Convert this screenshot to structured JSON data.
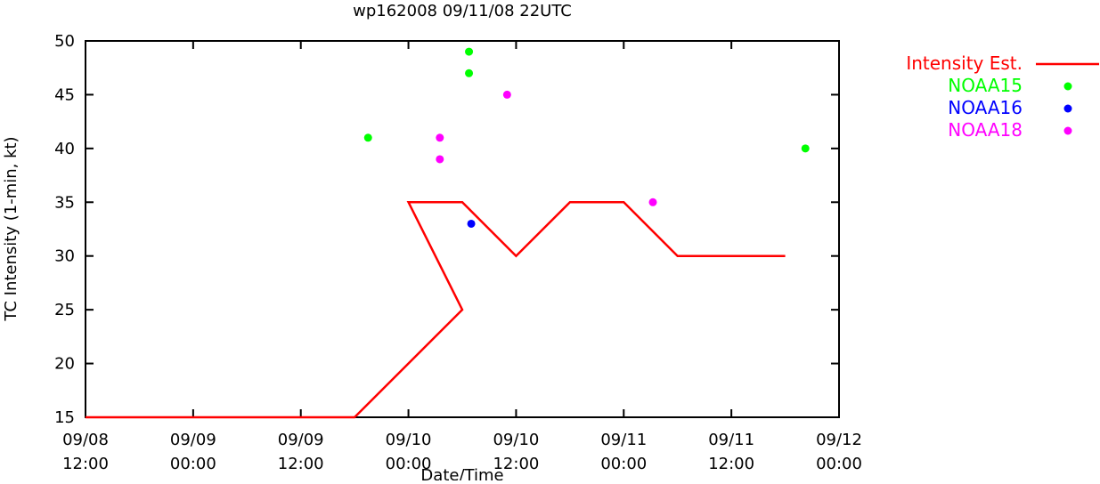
{
  "chart_data": {
    "type": "line",
    "title": "wp162008 09/11/08 22UTC",
    "xlabel": "Date/Time",
    "ylabel": "TC Intensity (1-min, kt)",
    "ylim": [
      15,
      50
    ],
    "yticks": [
      15,
      20,
      25,
      30,
      35,
      40,
      45,
      50
    ],
    "xlim": [
      "2008-09-08T12:00",
      "2008-09-12T00:00"
    ],
    "xticks": [
      {
        "t": "2008-09-08T12:00",
        "line1": "09/08",
        "line2": "12:00"
      },
      {
        "t": "2008-09-09T00:00",
        "line1": "09/09",
        "line2": "00:00"
      },
      {
        "t": "2008-09-09T12:00",
        "line1": "09/09",
        "line2": "12:00"
      },
      {
        "t": "2008-09-10T00:00",
        "line1": "09/10",
        "line2": "00:00"
      },
      {
        "t": "2008-09-10T12:00",
        "line1": "09/10",
        "line2": "12:00"
      },
      {
        "t": "2008-09-11T00:00",
        "line1": "09/11",
        "line2": "00:00"
      },
      {
        "t": "2008-09-11T12:00",
        "line1": "09/11",
        "line2": "12:00"
      },
      {
        "t": "2008-09-12T00:00",
        "line1": "09/12",
        "line2": "00:00"
      }
    ],
    "grid": false,
    "legend_position": "outside-right",
    "series": [
      {
        "name": "Intensity Est.",
        "kind": "line",
        "color": "#ff0000",
        "points": [
          {
            "x": "2008-09-08T12:00",
            "y": 15
          },
          {
            "x": "2008-09-09T18:00",
            "y": 15
          },
          {
            "x": "2008-09-10T06:00",
            "y": 25
          },
          {
            "x": "2008-09-10T00:00",
            "y": 35
          },
          {
            "x": "2008-09-10T06:00",
            "y": 35
          },
          {
            "x": "2008-09-10T12:00",
            "y": 30
          },
          {
            "x": "2008-09-10T18:00",
            "y": 35
          },
          {
            "x": "2008-09-11T00:00",
            "y": 35
          },
          {
            "x": "2008-09-11T06:00",
            "y": 30
          },
          {
            "x": "2008-09-11T18:00",
            "y": 30
          }
        ]
      },
      {
        "name": "NOAA15",
        "kind": "points",
        "color": "#00ff00",
        "points": [
          {
            "x": "2008-09-09T19:30",
            "y": 41
          },
          {
            "x": "2008-09-10T06:45",
            "y": 49
          },
          {
            "x": "2008-09-10T06:45",
            "y": 47
          },
          {
            "x": "2008-09-11T20:15",
            "y": 40
          }
        ]
      },
      {
        "name": "NOAA16",
        "kind": "points",
        "color": "#0000ff",
        "points": [
          {
            "x": "2008-09-10T07:00",
            "y": 33
          }
        ]
      },
      {
        "name": "NOAA18",
        "kind": "points",
        "color": "#ff00ff",
        "points": [
          {
            "x": "2008-09-10T03:30",
            "y": 41
          },
          {
            "x": "2008-09-10T03:30",
            "y": 39
          },
          {
            "x": "2008-09-10T11:00",
            "y": 45
          },
          {
            "x": "2008-09-11T03:15",
            "y": 35
          }
        ]
      }
    ]
  }
}
